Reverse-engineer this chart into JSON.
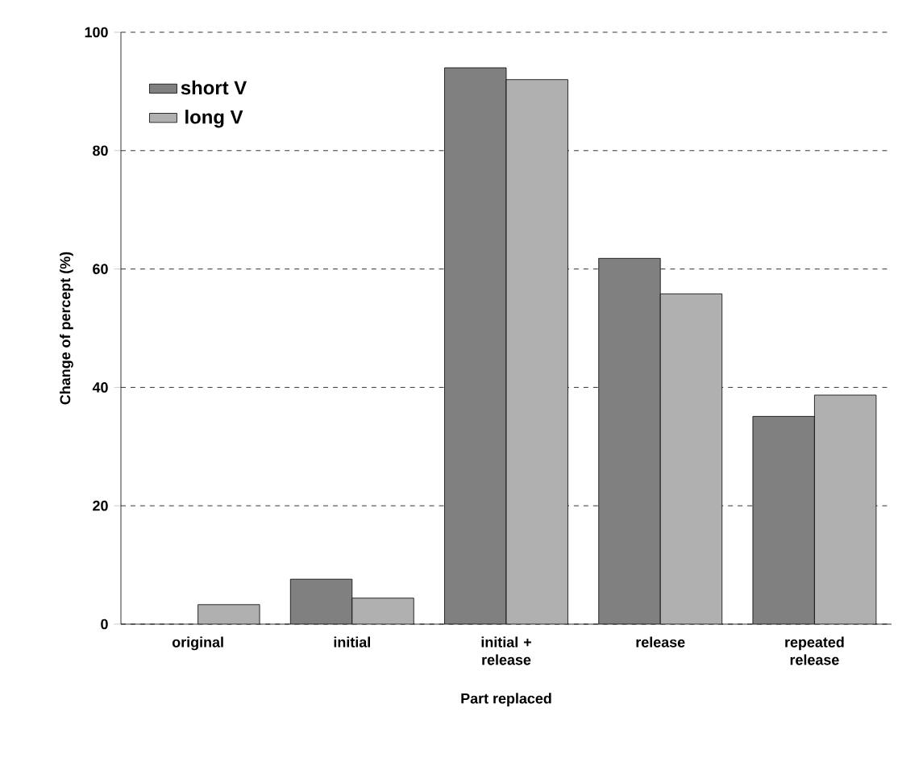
{
  "chart_data": {
    "type": "bar",
    "xlabel": "Part replaced",
    "ylabel": "Change of percept (%)",
    "categories": [
      "original",
      "initial",
      "initial + release",
      "release",
      "repeated release"
    ],
    "series": [
      {
        "name": "short V",
        "color": "#808080",
        "values": [
          null,
          7.6,
          94,
          61.8,
          35.1
        ]
      },
      {
        "name": "long V",
        "color": "#b0b0b0",
        "values": [
          3.3,
          4.4,
          92,
          55.8,
          38.7
        ]
      }
    ],
    "ylim": [
      0,
      100
    ],
    "yticks": [
      0,
      20,
      40,
      60,
      80,
      100
    ],
    "grid": "y",
    "legend": "top left"
  }
}
